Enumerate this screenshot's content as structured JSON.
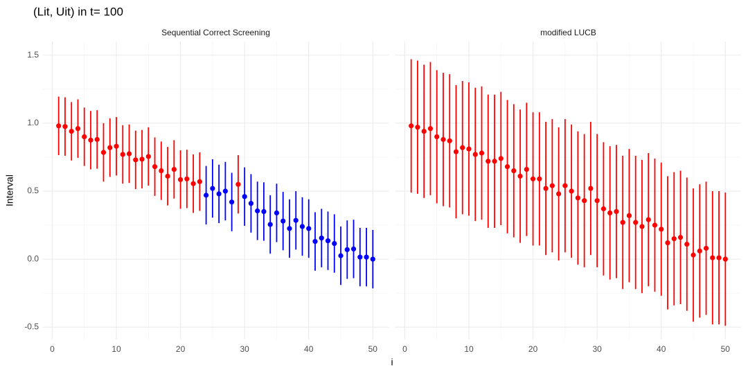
{
  "figure": {
    "title": "(Lit, Uit) in t= 100",
    "x_label": "i",
    "y_label": "Interval"
  },
  "chart_data": [
    {
      "type": "errorbar",
      "title": "Sequential Correct Screening",
      "x": [
        1,
        2,
        3,
        4,
        5,
        6,
        7,
        8,
        9,
        10,
        11,
        12,
        13,
        14,
        15,
        16,
        17,
        18,
        19,
        20,
        21,
        22,
        23,
        24,
        25,
        26,
        27,
        28,
        29,
        30,
        31,
        32,
        33,
        34,
        35,
        36,
        37,
        38,
        39,
        40,
        41,
        42,
        43,
        44,
        45,
        46,
        47,
        48,
        49,
        50
      ],
      "values": [
        0.98,
        0.975,
        0.94,
        0.96,
        0.9,
        0.875,
        0.88,
        0.785,
        0.82,
        0.83,
        0.77,
        0.775,
        0.73,
        0.735,
        0.755,
        0.68,
        0.65,
        0.61,
        0.66,
        0.585,
        0.59,
        0.555,
        0.57,
        0.47,
        0.52,
        0.48,
        0.5,
        0.42,
        0.55,
        0.46,
        0.41,
        0.355,
        0.35,
        0.255,
        0.34,
        0.28,
        0.225,
        0.285,
        0.24,
        0.225,
        0.13,
        0.155,
        0.135,
        0.115,
        0.025,
        0.07,
        0.075,
        0.015,
        0.015,
        0.0
      ],
      "errors": [
        0.215,
        0.215,
        0.215,
        0.215,
        0.215,
        0.215,
        0.215,
        0.215,
        0.215,
        0.215,
        0.215,
        0.215,
        0.215,
        0.215,
        0.215,
        0.215,
        0.215,
        0.215,
        0.215,
        0.215,
        0.215,
        0.215,
        0.215,
        0.215,
        0.215,
        0.215,
        0.215,
        0.215,
        0.215,
        0.215,
        0.215,
        0.215,
        0.215,
        0.215,
        0.215,
        0.215,
        0.215,
        0.215,
        0.215,
        0.215,
        0.215,
        0.215,
        0.215,
        0.215,
        0.215,
        0.215,
        0.215,
        0.215,
        0.215,
        0.215
      ],
      "colors": [
        "#ff0000",
        "#ff0000",
        "#ff0000",
        "#ff0000",
        "#ff0000",
        "#ff0000",
        "#ff0000",
        "#ff0000",
        "#ff0000",
        "#ff0000",
        "#ff0000",
        "#ff0000",
        "#ff0000",
        "#ff0000",
        "#ff0000",
        "#ff0000",
        "#ff0000",
        "#ff0000",
        "#ff0000",
        "#ff0000",
        "#ff0000",
        "#ff0000",
        "#ff0000",
        "#0000ff",
        "#0000ff",
        "#0000ff",
        "#0000ff",
        "#0000ff",
        "#ff0000",
        "#0000ff",
        "#0000ff",
        "#0000ff",
        "#0000ff",
        "#0000ff",
        "#0000ff",
        "#0000ff",
        "#0000ff",
        "#0000ff",
        "#0000ff",
        "#0000ff",
        "#0000ff",
        "#0000ff",
        "#0000ff",
        "#0000ff",
        "#0000ff",
        "#0000ff",
        "#0000ff",
        "#0000ff",
        "#0000ff",
        "#0000ff"
      ],
      "xlim": [
        -1.45,
        52.45
      ],
      "xticks": [
        0,
        10,
        20,
        30,
        40,
        50
      ],
      "x_minor_ticks": [
        5,
        15,
        25,
        35,
        45
      ],
      "ylim": [
        -0.59,
        1.6
      ],
      "yticks": [
        -0.5,
        {
          "value": 0,
          "label": "0.0"
        },
        0.5,
        {
          "value": 1,
          "label": "1.0"
        },
        1.5
      ],
      "y_minor_ticks": [
        -0.25,
        0.25,
        0.75,
        1.25
      ],
      "grid": true,
      "show_y_labels": true
    },
    {
      "type": "errorbar",
      "title": "modified LUCB",
      "x": [
        1,
        2,
        3,
        4,
        5,
        6,
        7,
        8,
        9,
        10,
        11,
        12,
        13,
        14,
        15,
        16,
        17,
        18,
        19,
        20,
        21,
        22,
        23,
        24,
        25,
        26,
        27,
        28,
        29,
        30,
        31,
        32,
        33,
        34,
        35,
        36,
        37,
        38,
        39,
        40,
        41,
        42,
        43,
        44,
        45,
        46,
        47,
        48,
        49,
        50
      ],
      "values": [
        0.98,
        0.97,
        0.94,
        0.96,
        0.9,
        0.88,
        0.87,
        0.79,
        0.82,
        0.81,
        0.77,
        0.78,
        0.72,
        0.72,
        0.74,
        0.68,
        0.65,
        0.61,
        0.66,
        0.59,
        0.59,
        0.52,
        0.54,
        0.48,
        0.54,
        0.5,
        0.45,
        0.43,
        0.52,
        0.43,
        0.37,
        0.34,
        0.35,
        0.27,
        0.32,
        0.27,
        0.24,
        0.29,
        0.25,
        0.22,
        0.12,
        0.15,
        0.16,
        0.11,
        0.03,
        0.06,
        0.08,
        0.01,
        0.01,
        0.0
      ],
      "errors": [
        0.49,
        0.49,
        0.49,
        0.49,
        0.49,
        0.49,
        0.49,
        0.49,
        0.49,
        0.49,
        0.49,
        0.49,
        0.49,
        0.49,
        0.49,
        0.49,
        0.49,
        0.49,
        0.49,
        0.49,
        0.49,
        0.49,
        0.49,
        0.49,
        0.49,
        0.49,
        0.49,
        0.49,
        0.49,
        0.49,
        0.49,
        0.49,
        0.49,
        0.49,
        0.49,
        0.49,
        0.49,
        0.49,
        0.49,
        0.49,
        0.49,
        0.49,
        0.49,
        0.49,
        0.49,
        0.49,
        0.49,
        0.49,
        0.49,
        0.49
      ],
      "colors": [
        "#ff0000",
        "#ff0000",
        "#ff0000",
        "#ff0000",
        "#ff0000",
        "#ff0000",
        "#ff0000",
        "#ff0000",
        "#ff0000",
        "#ff0000",
        "#ff0000",
        "#ff0000",
        "#ff0000",
        "#ff0000",
        "#ff0000",
        "#ff0000",
        "#ff0000",
        "#ff0000",
        "#ff0000",
        "#ff0000",
        "#ff0000",
        "#ff0000",
        "#ff0000",
        "#ff0000",
        "#ff0000",
        "#ff0000",
        "#ff0000",
        "#ff0000",
        "#ff0000",
        "#ff0000",
        "#ff0000",
        "#ff0000",
        "#ff0000",
        "#ff0000",
        "#ff0000",
        "#ff0000",
        "#ff0000",
        "#ff0000",
        "#ff0000",
        "#ff0000",
        "#ff0000",
        "#ff0000",
        "#ff0000",
        "#ff0000",
        "#ff0000",
        "#ff0000",
        "#ff0000",
        "#ff0000",
        "#ff0000",
        "#ff0000"
      ],
      "xlim": [
        -1.45,
        52.45
      ],
      "xticks": [
        0,
        10,
        20,
        30,
        40,
        50
      ],
      "x_minor_ticks": [
        5,
        15,
        25,
        35,
        45
      ],
      "ylim": [
        -0.59,
        1.6
      ],
      "yticks": [
        -0.5,
        {
          "value": 0,
          "label": "0.0"
        },
        0.5,
        {
          "value": 1,
          "label": "1.0"
        },
        1.5
      ],
      "y_minor_ticks": [
        -0.25,
        0.25,
        0.75,
        1.25
      ],
      "grid": true,
      "show_y_labels": false
    }
  ]
}
